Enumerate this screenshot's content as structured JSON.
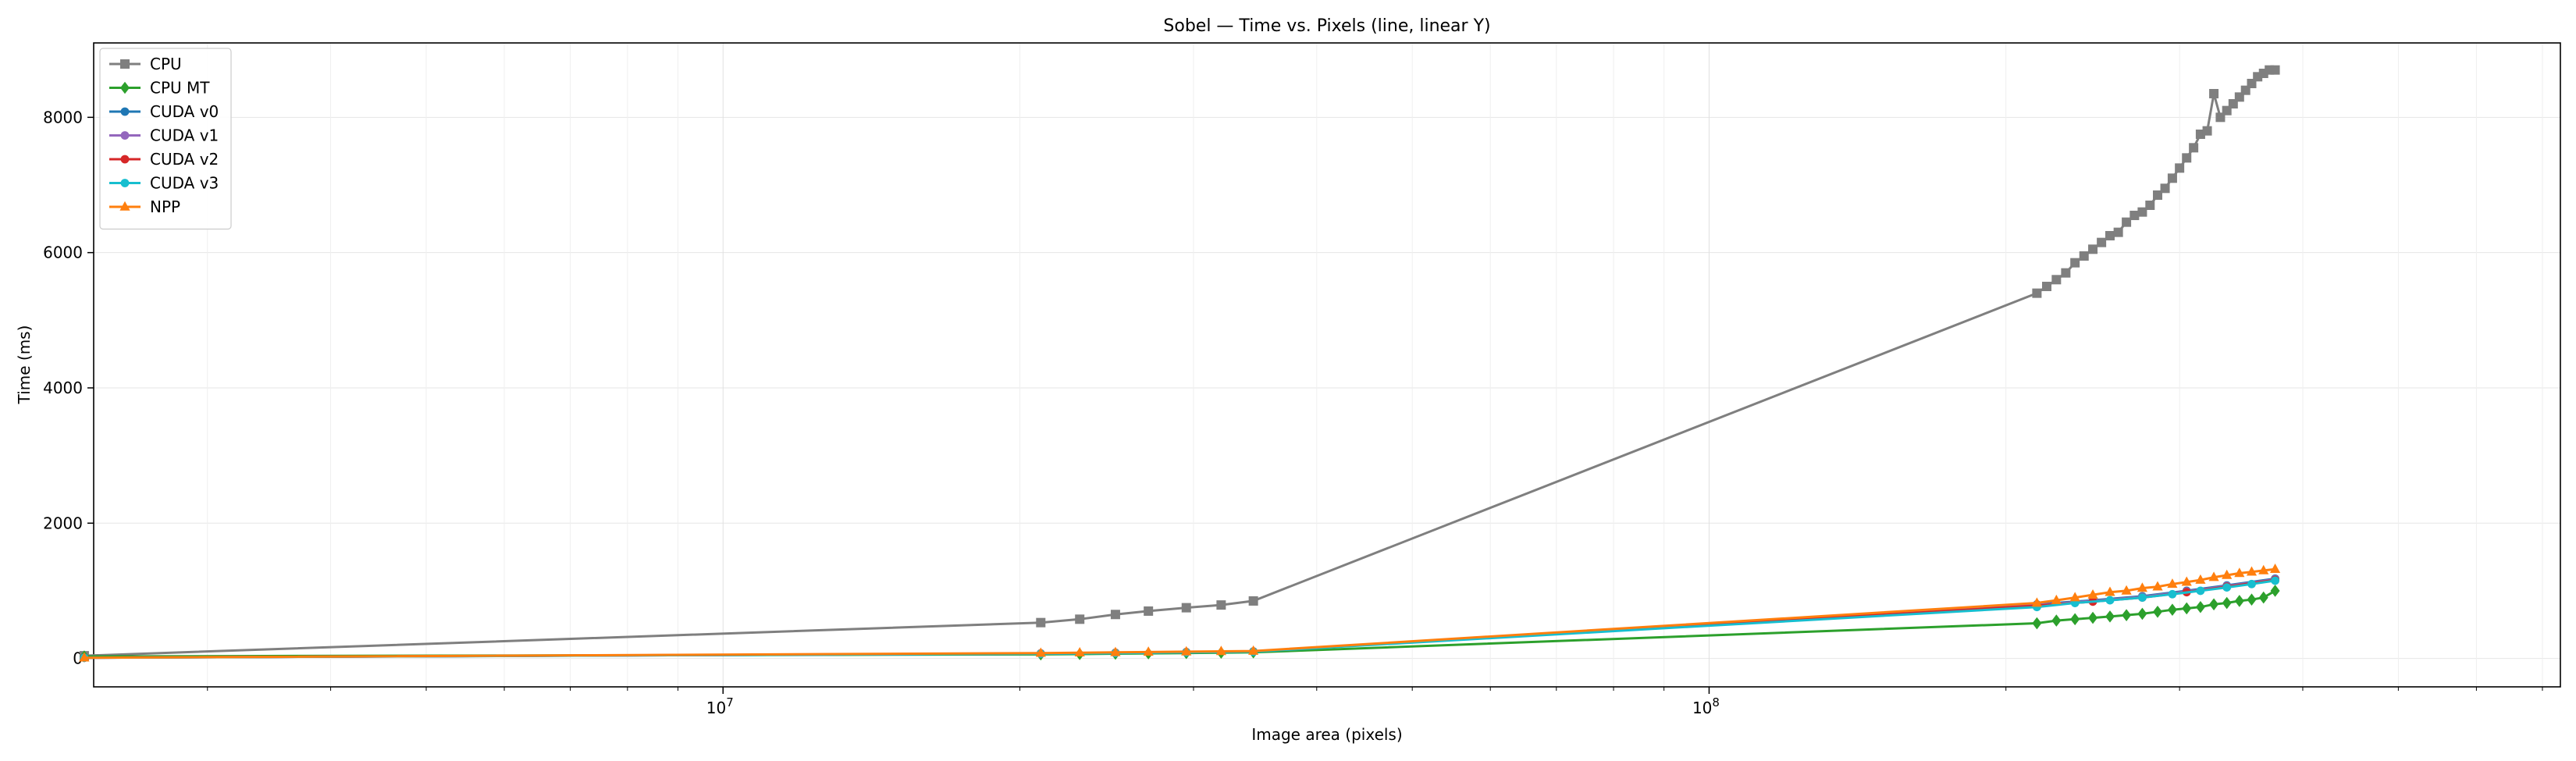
{
  "chart_data": {
    "type": "line",
    "title": "Sobel — Time vs. Pixels (line, linear Y)",
    "xlabel": "Image area (pixels)",
    "ylabel": "Time (ms)",
    "x_scale": "log",
    "y_scale": "linear",
    "xlim": [
      2300000,
      730000000
    ],
    "ylim": [
      -420,
      9100
    ],
    "y_ticks": [
      0,
      2000,
      4000,
      6000,
      8000
    ],
    "x_major_ticks": [
      10000000,
      100000000
    ],
    "x_tick_labels": [
      {
        "base": "10",
        "exp": "7"
      },
      {
        "base": "10",
        "exp": "8"
      }
    ],
    "grid": true,
    "legend_position": "top-left",
    "series": [
      {
        "name": "CPU",
        "color": "#7f7f7f",
        "marker": "square",
        "x": [
          2250000,
          21000000,
          23000000,
          25000000,
          27000000,
          29500000,
          32000000,
          34500000,
          215000000,
          220000000,
          225000000,
          230000000,
          235000000,
          240000000,
          245000000,
          250000000,
          255000000,
          260000000,
          265000000,
          270000000,
          275000000,
          280000000,
          285000000,
          290000000,
          295000000,
          300000000,
          305000000,
          310000000,
          315000000,
          320000000,
          325000000,
          330000000,
          335000000,
          340000000,
          345000000,
          350000000,
          355000000,
          360000000,
          365000000,
          370000000,
          375000000
        ],
        "y": [
          40,
          530,
          580,
          650,
          700,
          750,
          790,
          850,
          5400,
          5500,
          5600,
          5700,
          5850,
          5950,
          6050,
          6150,
          6250,
          6300,
          6450,
          6550,
          6600,
          6700,
          6850,
          6950,
          7100,
          7250,
          7400,
          7550,
          7750,
          7800,
          8350,
          8000,
          8100,
          8200,
          8300,
          8400,
          8500,
          8600,
          8650,
          8700,
          8700
        ]
      },
      {
        "name": "CPU MT",
        "color": "#2ca02c",
        "marker": "diamond",
        "x": [
          2250000,
          21000000,
          23000000,
          25000000,
          27000000,
          29500000,
          32000000,
          34500000,
          215000000,
          225000000,
          235000000,
          245000000,
          255000000,
          265000000,
          275000000,
          285000000,
          295000000,
          305000000,
          315000000,
          325000000,
          335000000,
          345000000,
          355000000,
          365000000,
          375000000
        ],
        "y": [
          30,
          60,
          65,
          70,
          75,
          80,
          85,
          90,
          520,
          560,
          580,
          600,
          620,
          640,
          660,
          690,
          720,
          740,
          760,
          800,
          820,
          850,
          870,
          900,
          1000
        ]
      },
      {
        "name": "CUDA v0",
        "color": "#1f77b4",
        "marker": "circle",
        "x": [
          2250000,
          21000000,
          25000000,
          29500000,
          34500000,
          215000000,
          245000000,
          275000000,
          305000000,
          335000000,
          375000000
        ],
        "y": [
          10,
          70,
          80,
          90,
          100,
          800,
          860,
          920,
          1000,
          1080,
          1180
        ]
      },
      {
        "name": "CUDA v1",
        "color": "#9467bd",
        "marker": "circle",
        "x": [
          2250000,
          21000000,
          25000000,
          29500000,
          34500000,
          215000000,
          245000000,
          275000000,
          305000000,
          335000000,
          375000000
        ],
        "y": [
          10,
          72,
          82,
          92,
          102,
          790,
          850,
          910,
          990,
          1070,
          1170
        ]
      },
      {
        "name": "CUDA v2",
        "color": "#d62728",
        "marker": "circle",
        "x": [
          2250000,
          21000000,
          25000000,
          29500000,
          34500000,
          215000000,
          245000000,
          275000000,
          305000000,
          335000000,
          375000000
        ],
        "y": [
          10,
          74,
          84,
          94,
          104,
          780,
          840,
          900,
          980,
          1060,
          1160
        ]
      },
      {
        "name": "CUDA v3",
        "color": "#17becf",
        "marker": "circle",
        "x": [
          2250000,
          21000000,
          25000000,
          29500000,
          34500000,
          215000000,
          235000000,
          255000000,
          275000000,
          295000000,
          315000000,
          335000000,
          355000000,
          375000000
        ],
        "y": [
          10,
          70,
          80,
          90,
          100,
          760,
          820,
          860,
          900,
          950,
          1000,
          1050,
          1100,
          1150
        ]
      },
      {
        "name": "NPP",
        "color": "#ff7f0e",
        "marker": "triangle",
        "x": [
          2250000,
          21000000,
          23000000,
          25000000,
          27000000,
          29500000,
          32000000,
          34500000,
          215000000,
          225000000,
          235000000,
          245000000,
          255000000,
          265000000,
          275000000,
          285000000,
          295000000,
          305000000,
          315000000,
          325000000,
          335000000,
          345000000,
          355000000,
          365000000,
          375000000
        ],
        "y": [
          10,
          80,
          85,
          90,
          95,
          100,
          105,
          110,
          820,
          860,
          900,
          940,
          980,
          1000,
          1040,
          1060,
          1100,
          1130,
          1160,
          1200,
          1230,
          1260,
          1280,
          1300,
          1320
        ]
      }
    ]
  }
}
